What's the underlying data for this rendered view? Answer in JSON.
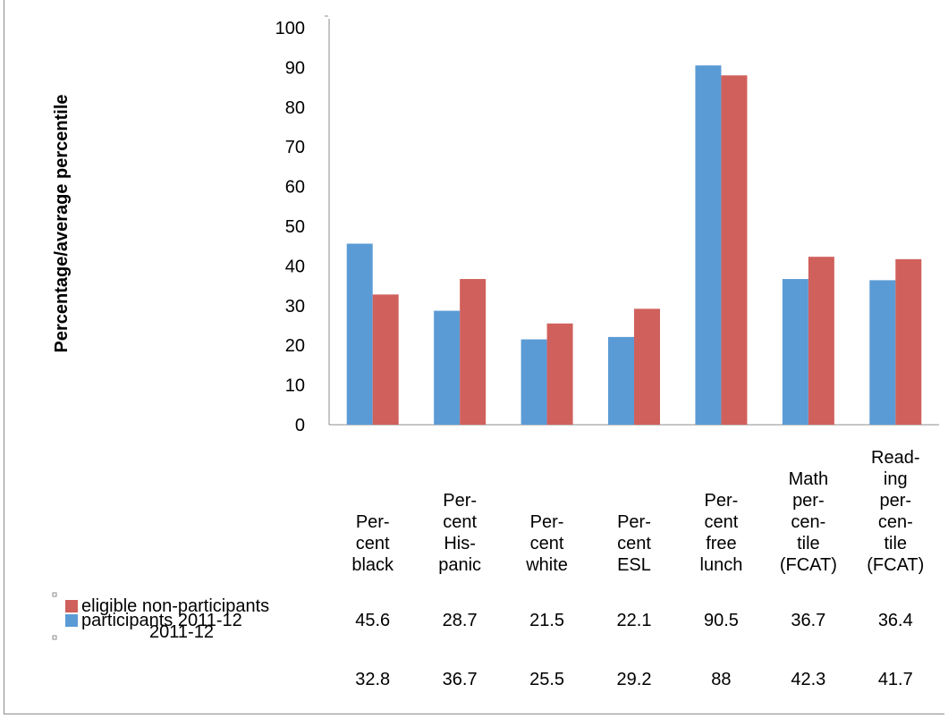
{
  "chart_data": {
    "type": "bar",
    "ylabel": "Percentage/average percentile",
    "ylim": [
      0,
      100
    ],
    "yticks": [
      0,
      10,
      20,
      30,
      40,
      50,
      60,
      70,
      80,
      90,
      100
    ],
    "categories": [
      [
        "Per-",
        "cent",
        "black"
      ],
      [
        "Per-",
        "cent",
        "His-",
        "panic"
      ],
      [
        "Per-",
        "cent",
        "white"
      ],
      [
        "Per-",
        "cent",
        "ESL"
      ],
      [
        "Per-",
        "cent",
        "free",
        "lunch"
      ],
      [
        "Math",
        "per-",
        "cen-",
        "tile",
        "(FCAT)"
      ],
      [
        "Read-",
        "ing",
        "per-",
        "cen-",
        "tile",
        "(FCAT)"
      ]
    ],
    "series": [
      {
        "name": "participants 2011-12",
        "name_lines": [
          "participants 2011-12"
        ],
        "color": "#5B9BD5",
        "values": [
          45.6,
          28.7,
          21.5,
          22.1,
          90.5,
          36.7,
          36.4
        ],
        "value_labels": [
          "45.6",
          "28.7",
          "21.5",
          "22.1",
          "90.5",
          "36.7",
          "36.4"
        ]
      },
      {
        "name": "eligible non-participants 2011-12",
        "name_lines": [
          "eligible non-participants",
          "2011-12"
        ],
        "color": "#D0605C",
        "values": [
          32.8,
          36.7,
          25.5,
          29.2,
          88,
          42.3,
          41.7
        ],
        "value_labels": [
          "32.8",
          "36.7",
          "25.5",
          "29.2",
          "88",
          "42.3",
          "41.7"
        ]
      }
    ],
    "legend": "data table below chart",
    "grid": false
  }
}
